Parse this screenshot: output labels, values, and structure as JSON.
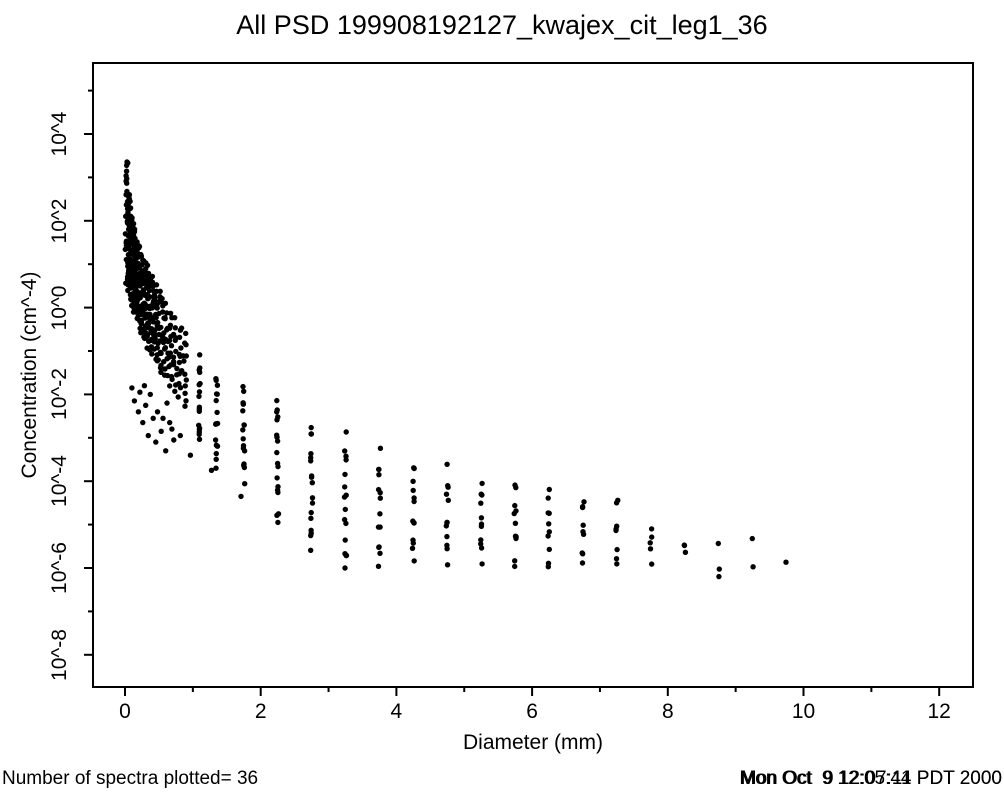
{
  "title": "All PSD 199908192127_kwajex_cit_leg1_36",
  "footer": {
    "left_text": "Number of spectra plotted= 36",
    "timestamp_overprint_a": "Mon Oct  9 12:05:44 PDT 2000",
    "timestamp_overprint_b": "Mon Oct  9 12:07:11 PDT 2000"
  },
  "chart_data": {
    "type": "scatter",
    "title": "All PSD 199908192127_kwajex_cit_leg1_36",
    "xlabel": "Diameter (mm)",
    "ylabel": "Concentration (cm^-4)",
    "x_axis": {
      "lim": [
        -0.47,
        12.5
      ],
      "ticks_major": [
        0,
        2,
        4,
        6,
        8,
        10,
        12
      ],
      "ticks_minor": [
        1,
        3,
        5,
        7,
        9,
        11
      ],
      "tick_labels": [
        "0",
        "2",
        "4",
        "6",
        "8",
        "10",
        "12"
      ]
    },
    "y_axis": {
      "scale": "log10",
      "lim_log10": [
        -8.74,
        5.6
      ],
      "ticks_major_exp": [
        4,
        2,
        0,
        -2,
        -4,
        -6,
        -8
      ],
      "ticks_minor_exp": [
        5,
        3,
        1,
        -1,
        -3,
        -5,
        -7
      ],
      "tick_labels": [
        "10^4",
        "10^2",
        "10^0",
        "10^-2",
        "10^-4",
        "10^-6",
        "10^-8"
      ],
      "tick_labels_rotated": true
    },
    "grid": false,
    "legend": "none",
    "marker": {
      "shape": "filled-circle",
      "color": "#000000",
      "radius_px": 2.7
    },
    "n_spectra": 36,
    "columns_note": "Vertical streaks of points at discrete diameter bins; log_hi/log_lo are log10 concentration extents read from the axes, n = approx. dot count.",
    "columns": [
      {
        "d": 0.03,
        "log_hi": 3.4,
        "log_lo": 0.5,
        "n": 36
      },
      {
        "d": 0.06,
        "log_hi": 2.55,
        "log_lo": 0.3,
        "n": 30
      },
      {
        "d": 0.09,
        "log_hi": 2.15,
        "log_lo": 0.15,
        "n": 28
      },
      {
        "d": 0.12,
        "log_hi": 1.9,
        "log_lo": 0.0,
        "n": 26
      },
      {
        "d": 0.15,
        "log_hi": 1.7,
        "log_lo": -0.15,
        "n": 25
      },
      {
        "d": 0.18,
        "log_hi": 1.52,
        "log_lo": -0.3,
        "n": 24
      },
      {
        "d": 0.21,
        "log_hi": 1.38,
        "log_lo": -0.45,
        "n": 23
      },
      {
        "d": 0.25,
        "log_hi": 1.22,
        "log_lo": -0.6,
        "n": 22
      },
      {
        "d": 0.29,
        "log_hi": 1.06,
        "log_lo": -0.75,
        "n": 21
      },
      {
        "d": 0.33,
        "log_hi": 0.92,
        "log_lo": -0.88,
        "n": 20
      },
      {
        "d": 0.37,
        "log_hi": 0.78,
        "log_lo": -1.0,
        "n": 19
      },
      {
        "d": 0.41,
        "log_hi": 0.65,
        "log_lo": -1.1,
        "n": 18
      },
      {
        "d": 0.45,
        "log_hi": 0.52,
        "log_lo": -1.22,
        "n": 17
      },
      {
        "d": 0.5,
        "log_hi": 0.38,
        "log_lo": -1.35,
        "n": 16
      },
      {
        "d": 0.55,
        "log_hi": 0.24,
        "log_lo": -1.48,
        "n": 15
      },
      {
        "d": 0.61,
        "log_hi": 0.08,
        "log_lo": -1.62,
        "n": 15
      },
      {
        "d": 0.67,
        "log_hi": -0.08,
        "log_lo": -1.75,
        "n": 14
      },
      {
        "d": 0.74,
        "log_hi": -0.26,
        "log_lo": -1.88,
        "n": 13
      },
      {
        "d": 0.81,
        "log_hi": -0.42,
        "log_lo": -2.05,
        "n": 12
      },
      {
        "d": 0.88,
        "log_hi": -0.58,
        "log_lo": -2.25,
        "n": 12
      },
      {
        "d": 1.1,
        "log_hi": -1.15,
        "log_lo": -3.05,
        "n": 15
      },
      {
        "d": 1.35,
        "log_hi": -1.55,
        "log_lo": -3.5,
        "n": 15
      },
      {
        "d": 1.75,
        "log_hi": -1.85,
        "log_lo": -3.95,
        "n": 16
      },
      {
        "d": 2.25,
        "log_hi": -2.15,
        "log_lo": -4.75,
        "n": 16
      },
      {
        "d": 2.75,
        "log_hi": -2.75,
        "log_lo": -5.5,
        "n": 17
      },
      {
        "d": 3.25,
        "log_hi": -3.0,
        "log_lo": -5.85,
        "n": 15
      },
      {
        "d": 3.75,
        "log_hi": -3.35,
        "log_lo": -6.0,
        "n": 14
      },
      {
        "d": 4.25,
        "log_hi": -3.55,
        "log_lo": -5.9,
        "n": 13
      },
      {
        "d": 4.75,
        "log_hi": -3.75,
        "log_lo": -5.85,
        "n": 12
      },
      {
        "d": 5.25,
        "log_hi": -3.95,
        "log_lo": -5.9,
        "n": 11
      },
      {
        "d": 5.75,
        "log_hi": -4.05,
        "log_lo": -5.9,
        "n": 11
      },
      {
        "d": 6.25,
        "log_hi": -4.2,
        "log_lo": -5.9,
        "n": 10
      },
      {
        "d": 6.75,
        "log_hi": -4.35,
        "log_lo": -5.9,
        "n": 9
      },
      {
        "d": 7.25,
        "log_hi": -4.55,
        "log_lo": -5.9,
        "n": 8
      },
      {
        "d": 7.75,
        "log_hi": -5.05,
        "log_lo": -5.8,
        "n": 5
      },
      {
        "d": 8.25,
        "log_hi": -5.45,
        "log_lo": -5.8,
        "n": 3
      },
      {
        "d": 8.75,
        "log_hi": -5.7,
        "log_lo": -6.1,
        "n": 3
      },
      {
        "d": 9.25,
        "log_hi": -5.25,
        "log_lo": -5.78,
        "n": 2
      },
      {
        "d": 9.75,
        "log_hi": -5.78,
        "log_lo": -5.78,
        "n": 1
      }
    ],
    "scatter_extra": [
      {
        "d": 0.1,
        "log10": -1.85
      },
      {
        "d": 0.14,
        "log10": -2.15
      },
      {
        "d": 0.19,
        "log10": -2.4
      },
      {
        "d": 0.23,
        "log10": -1.95
      },
      {
        "d": 0.27,
        "log10": -2.65
      },
      {
        "d": 0.31,
        "log10": -2.25
      },
      {
        "d": 0.35,
        "log10": -2.95
      },
      {
        "d": 0.41,
        "log10": -2.55
      },
      {
        "d": 0.46,
        "log10": -3.1
      },
      {
        "d": 0.53,
        "log10": -2.85
      },
      {
        "d": 0.59,
        "log10": -3.3
      },
      {
        "d": 0.66,
        "log10": -2.65
      },
      {
        "d": 0.73,
        "log10": -3.05
      },
      {
        "d": 0.81,
        "log10": -2.95
      },
      {
        "d": 0.63,
        "log10": -2.2
      },
      {
        "d": 0.48,
        "log10": -2.4
      },
      {
        "d": 0.37,
        "log10": -2.0
      },
      {
        "d": 0.29,
        "log10": -1.8
      },
      {
        "d": 0.56,
        "log10": -2.55
      },
      {
        "d": 0.69,
        "log10": -2.8
      },
      {
        "d": 0.96,
        "log10": -3.4
      },
      {
        "d": 1.28,
        "log10": -3.75
      },
      {
        "d": 1.1,
        "log10": -2.78
      },
      {
        "d": 1.1,
        "log10": -2.92
      },
      {
        "d": 1.35,
        "log10": -3.7
      },
      {
        "d": 1.72,
        "log10": -4.35
      },
      {
        "d": 2.25,
        "log10": -4.95
      },
      {
        "d": 2.25,
        "log10": -2.36
      },
      {
        "d": 3.25,
        "log10": -6.0
      }
    ]
  }
}
